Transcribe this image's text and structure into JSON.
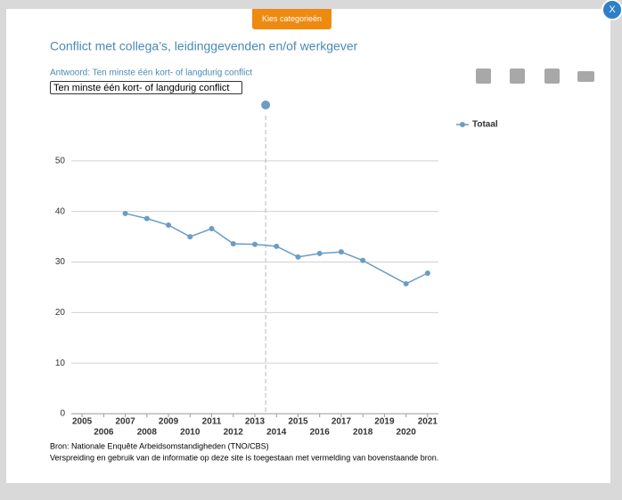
{
  "button": "Kies categorieën",
  "close": "X",
  "select_option": "Ten minste één kort- of langdurig conflict",
  "chart_data": {
    "type": "line",
    "title": "Conflict met collega’s, leidinggevenden en/of werkgever",
    "subtitle": "Antwoord: Ten minste één kort- of langdurig conflict",
    "x": [
      2007,
      2008,
      2009,
      2010,
      2011,
      2012,
      2013,
      2014,
      2015,
      2016,
      2017,
      2018,
      2020,
      2021
    ],
    "series": [
      {
        "name": "Totaal",
        "color": "#6b9cc4",
        "values": [
          39.6,
          38.6,
          37.3,
          35.0,
          36.6,
          33.6,
          33.5,
          33.1,
          31.0,
          31.7,
          32.0,
          30.3,
          25.7,
          27.8
        ]
      }
    ],
    "xlim": [
      2004.5,
      2021.5
    ],
    "xticks": [
      2005,
      2006,
      2007,
      2008,
      2009,
      2010,
      2011,
      2012,
      2013,
      2014,
      2015,
      2016,
      2017,
      2018,
      2019,
      2020,
      2021
    ],
    "ylim": [
      0,
      60
    ],
    "yticks": [
      0,
      10,
      20,
      30,
      40,
      50
    ],
    "plot_line_x": 2013.5,
    "grid": true,
    "legend": "top-right",
    "source": [
      "Bron: Nationale Enquête Arbeidsomstandigheden (TNO/CBS)",
      "Verspreiding en gebruik van de informatie op deze site is toegestaan met vermelding van bovenstaande bron."
    ]
  }
}
